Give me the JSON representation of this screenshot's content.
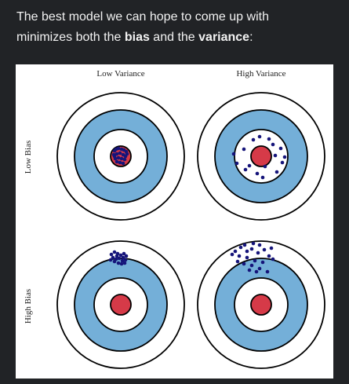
{
  "caption": {
    "line1": "The best model we can hope to come up with",
    "line2_prefix": "minimizes both the ",
    "bias_word": "bias",
    "line2_middle": " and the ",
    "variance_word": "variance",
    "line2_suffix": ":"
  },
  "figure": {
    "col_labels": [
      "Low Variance",
      "High Variance"
    ],
    "row_labels": [
      "Low Bias",
      "High Bias"
    ],
    "colors": {
      "ring_blue": "#74afd8",
      "bullseye_red": "#d63a48",
      "ring_stroke": "#000000",
      "dot": "#15147a"
    }
  }
}
